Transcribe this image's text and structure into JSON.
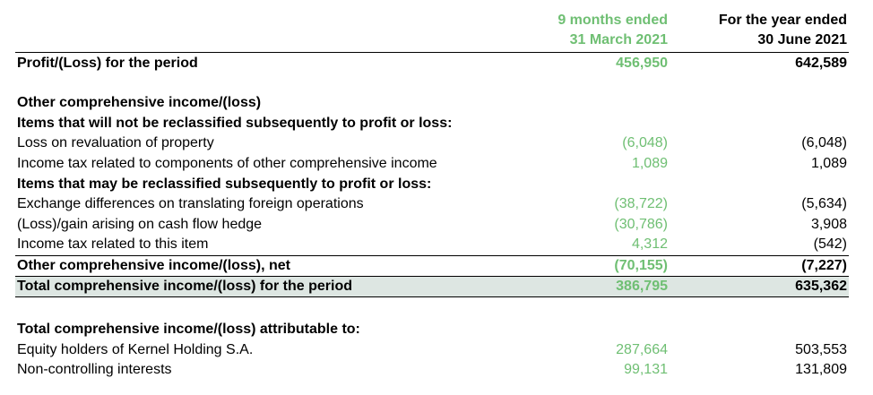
{
  "headers": {
    "col1_line1": "9 months ended",
    "col1_line2": "31 March 2021",
    "col2_line1": "For the year ended",
    "col2_line2": "30 June 2021"
  },
  "rows": [
    {
      "label": "Profit/(Loss) for the period",
      "v1": "456,950",
      "v2": "642,589"
    },
    {
      "label": "Other comprehensive income/(loss)"
    },
    {
      "label": "Items that will not be reclassified subsequently to profit or loss:"
    },
    {
      "label": "Loss on revaluation of property",
      "v1": "(6,048)",
      "v2": "(6,048)"
    },
    {
      "label": "Income tax related to components of other comprehensive income",
      "v1": "1,089",
      "v2": "1,089"
    },
    {
      "label": "Items that may be reclassified subsequently to profit or loss:"
    },
    {
      "label": "Exchange differences on translating foreign operations",
      "v1": "(38,722)",
      "v2": "(5,634)"
    },
    {
      "label": "(Loss)/gain arising on cash flow hedge",
      "v1": "(30,786)",
      "v2": "3,908"
    },
    {
      "label": "Income tax related to this item",
      "v1": "4,312",
      "v2": "(542)"
    },
    {
      "label": "Other comprehensive income/(loss), net",
      "v1": "(70,155)",
      "v2": "(7,227)"
    },
    {
      "label": "Total comprehensive income/(loss) for the period",
      "v1": "386,795",
      "v2": "635,362"
    },
    {
      "label": "Total comprehensive income/(loss) attributable to:"
    },
    {
      "label": "Equity holders of Kernel Holding S.A.",
      "v1": "287,664",
      "v2": "503,553"
    },
    {
      "label": "Non-controlling interests",
      "v1": "99,131",
      "v2": "131,809"
    }
  ]
}
